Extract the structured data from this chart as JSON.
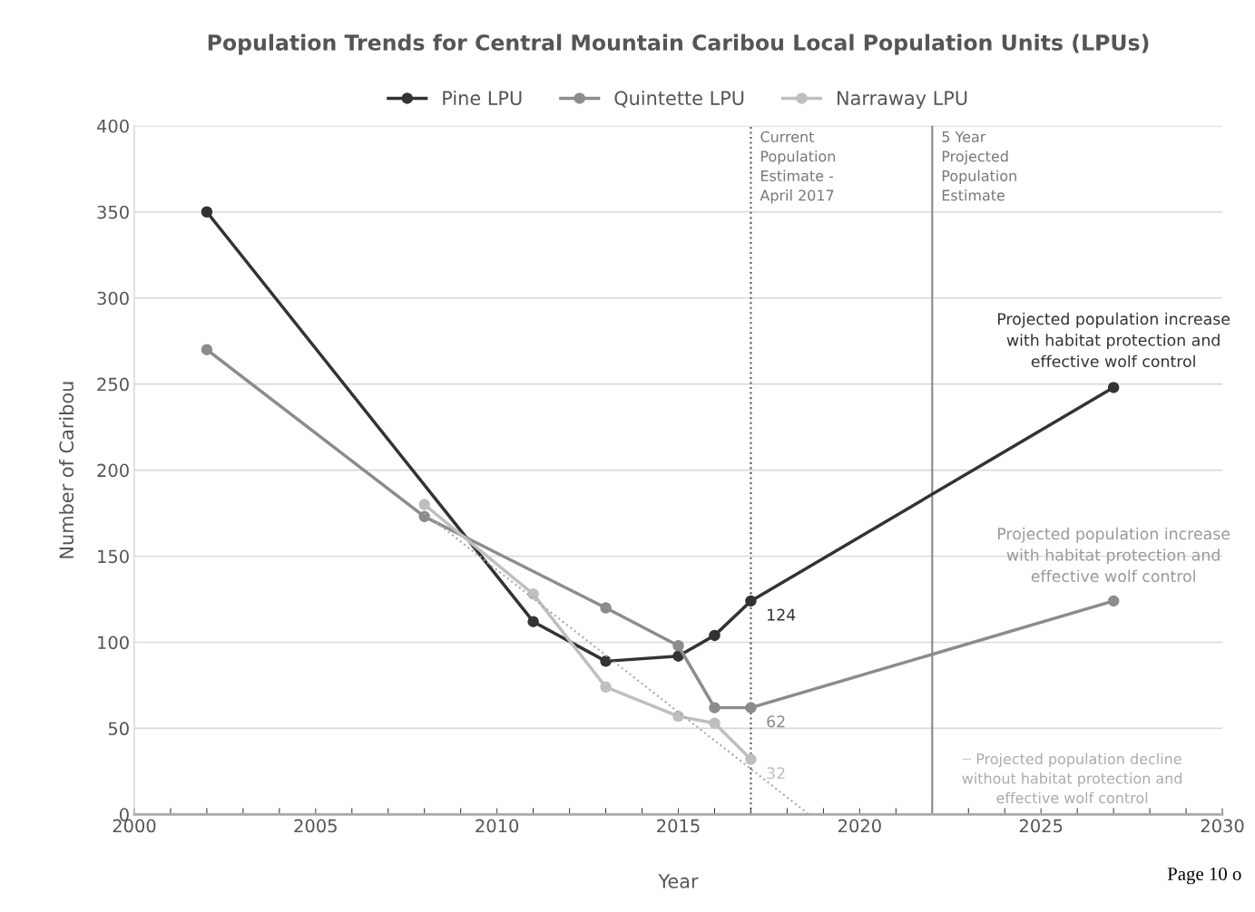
{
  "chart_data": {
    "type": "line",
    "title": "Population Trends for Central Mountain Caribou Local Population Units (LPUs)",
    "xlabel": "Year",
    "ylabel": "Number of Caribou",
    "series": [
      {
        "name": "Pine LPU",
        "color": "#333333",
        "x": [
          2002,
          2011,
          2013,
          2015,
          2016,
          2017,
          2027
        ],
        "values": [
          350,
          112,
          89,
          92,
          104,
          124,
          248
        ],
        "value_labels": [
          null,
          null,
          null,
          null,
          null,
          "124",
          null
        ]
      },
      {
        "name": "Quintette LPU",
        "color": "#8c8c8c",
        "x": [
          2002,
          2008,
          2013,
          2015,
          2016,
          2017,
          2027
        ],
        "values": [
          270,
          173,
          120,
          98,
          62,
          62,
          124
        ],
        "value_labels": [
          null,
          null,
          null,
          null,
          null,
          "62",
          null
        ]
      },
      {
        "name": "Narraway LPU",
        "color": "#bfbfbf",
        "x": [
          2008,
          2011,
          2013,
          2015,
          2016,
          2017
        ],
        "values": [
          180,
          128,
          74,
          57,
          53,
          32
        ],
        "value_labels": [
          null,
          null,
          null,
          null,
          null,
          "32"
        ]
      },
      {
        "color": "#a8a8a8",
        "x": [
          2008,
          2018.6
        ],
        "values": [
          175,
          0
        ],
        "line_style": "dotted",
        "marker": "none"
      }
    ],
    "marker": "circle",
    "line_style": "solid",
    "xlim": [
      2000,
      2030
    ],
    "xticks": [
      2000,
      2005,
      2010,
      2015,
      2020,
      2025,
      2030
    ],
    "ylim": [
      0,
      400
    ],
    "yticks": [
      0,
      50,
      100,
      150,
      200,
      250,
      300,
      350,
      400
    ],
    "grid": "y",
    "legend": "top",
    "ref_lines": [
      {
        "axis": "x",
        "value": 2017,
        "label": "Current\nPopulation\nEstimate -\nApril 2017",
        "color": "#555555",
        "line_style": "dotted"
      },
      {
        "axis": "x",
        "value": 2022,
        "label": "5 Year\nProjected\nPopulation\nEstimate",
        "color": "#888888",
        "line_style": "solid"
      }
    ],
    "annotations": [
      "Projected population increase\nwith habitat protection and\neffective wolf control",
      "Projected population increase\nwith habitat protection and\neffective wolf control",
      "┈ Projected population decline\nwithout habitat protection and\neffective wolf control",
      "Page 10 o"
    ]
  }
}
